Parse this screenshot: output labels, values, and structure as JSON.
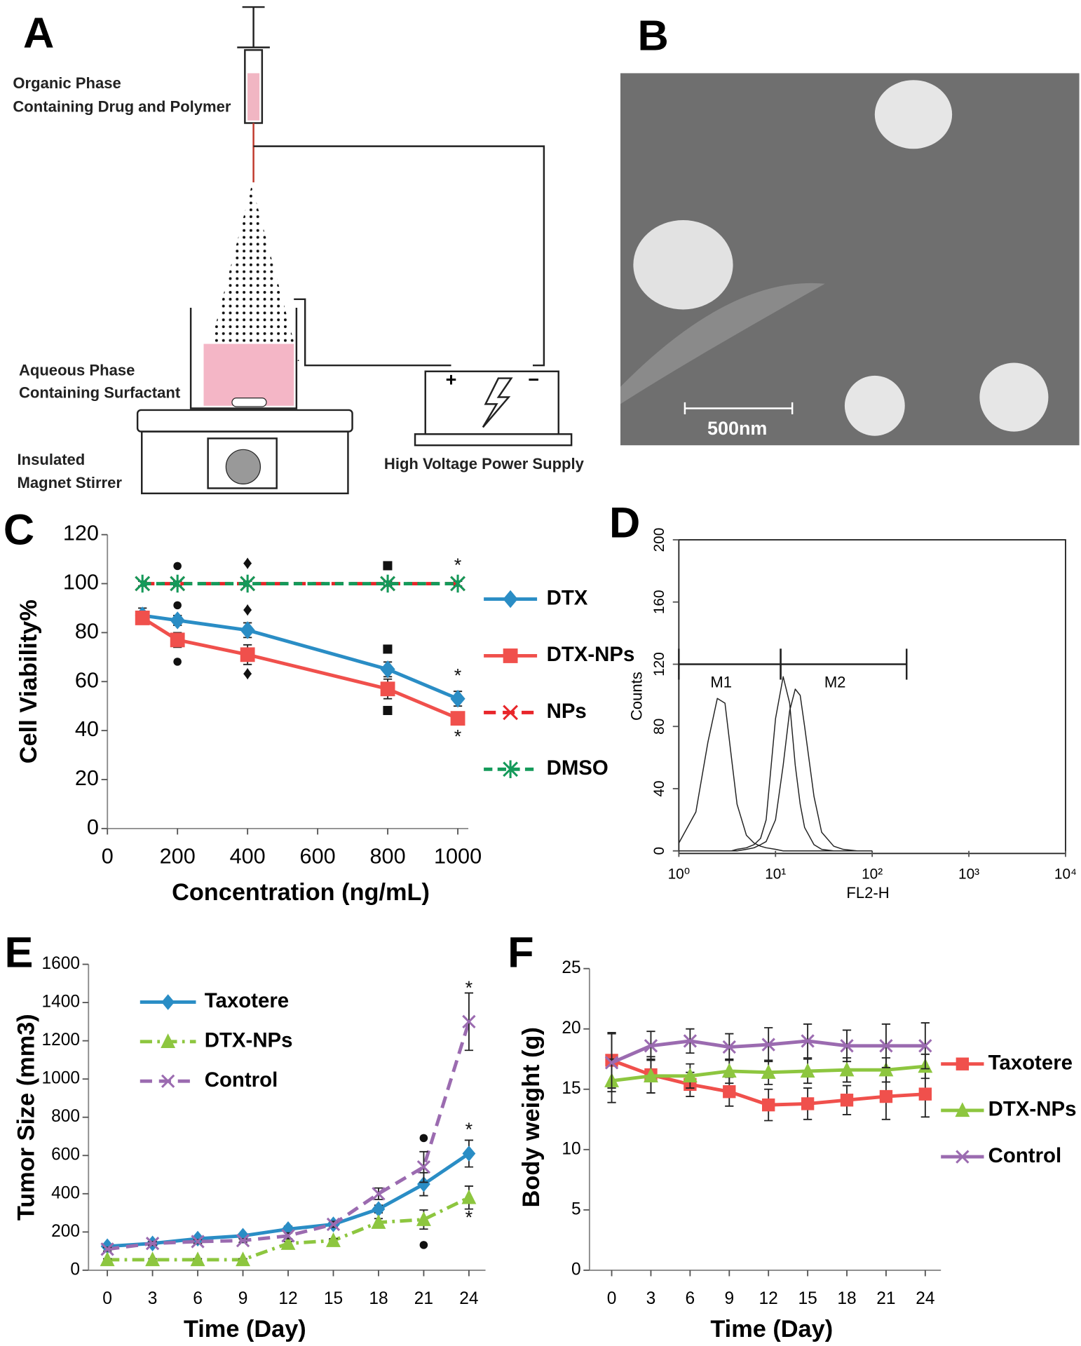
{
  "panel_a": {
    "letter": "A",
    "organic_phase": [
      "Organic Phase",
      "Containing Drug and Polymer"
    ],
    "aqueous_phase": [
      "Aqueous Phase",
      "Containing Surfactant"
    ],
    "stirrer": [
      "Insulated",
      "Magnet Stirrer"
    ],
    "power_supply": "High Voltage Power Supply"
  },
  "panel_b": {
    "letter": "B",
    "scale_bar": "500nm"
  },
  "chart_data": [
    {
      "type": "line",
      "panel": "C",
      "x": [
        100,
        200,
        400,
        800,
        1000
      ],
      "xlim": [
        0,
        1030
      ],
      "xticks": [
        0,
        200,
        400,
        600,
        800,
        1000
      ],
      "ylim": [
        0,
        120
      ],
      "yticks": [
        0,
        20,
        40,
        60,
        80,
        100,
        120
      ],
      "xlabel": "Concentration (ng/mL)",
      "ylabel": "Cell Viability%",
      "series": [
        {
          "name": "DTX",
          "color": "#2a8dc5",
          "marker": "diamond",
          "dash": "solid",
          "values": [
            87,
            85,
            81,
            65,
            53
          ],
          "errors": [
            3,
            2,
            3,
            3,
            3
          ]
        },
        {
          "name": "DTX-NPs",
          "color": "#f0504c",
          "marker": "square",
          "dash": "solid",
          "values": [
            86,
            77,
            71,
            57,
            45
          ],
          "errors": [
            2,
            3,
            4,
            4,
            2
          ]
        },
        {
          "name": "NPs",
          "color": "#e8262a",
          "marker": "x",
          "dash": "dashed",
          "values": [
            100,
            100,
            100,
            100,
            100
          ],
          "errors": [
            1,
            1,
            1,
            1,
            1
          ]
        },
        {
          "name": "DMSO",
          "color": "#149a5a",
          "marker": "asterisk",
          "dash": "dotted",
          "values": [
            100,
            100,
            100,
            100,
            100
          ],
          "errors": [
            1,
            1,
            1,
            1,
            1
          ]
        }
      ],
      "annotations": [
        {
          "text": "●",
          "x": 200,
          "y": 107
        },
        {
          "text": "●",
          "x": 200,
          "y": 91
        },
        {
          "text": "●",
          "x": 200,
          "y": 68
        },
        {
          "text": "♦",
          "x": 400,
          "y": 108
        },
        {
          "text": "♦",
          "x": 400,
          "y": 89
        },
        {
          "text": "♦",
          "x": 400,
          "y": 63
        },
        {
          "text": "■",
          "x": 800,
          "y": 107
        },
        {
          "text": "■",
          "x": 800,
          "y": 73
        },
        {
          "text": "■",
          "x": 800,
          "y": 48
        },
        {
          "text": "*",
          "x": 1000,
          "y": 107
        },
        {
          "text": "*",
          "x": 1000,
          "y": 62
        },
        {
          "text": "*",
          "x": 1000,
          "y": 37
        }
      ]
    },
    {
      "type": "line",
      "panel": "D",
      "xlog": true,
      "box": true,
      "x": [
        1,
        1.5,
        2,
        2.5,
        3,
        3.5,
        4,
        5,
        6,
        7,
        8,
        10,
        12,
        14,
        16,
        18,
        20,
        25,
        30,
        40,
        50,
        70,
        100
      ],
      "xlim": [
        1,
        10000
      ],
      "xticks": [
        {
          "value": 1,
          "label": "10⁰"
        },
        {
          "value": 10,
          "label": "10¹"
        },
        {
          "value": 100,
          "label": "10²"
        },
        {
          "value": 1000,
          "label": "10³"
        },
        {
          "value": 10000,
          "label": "10⁴"
        }
      ],
      "ylim": [
        0,
        200
      ],
      "yticks": [
        0,
        40,
        80,
        120,
        160,
        200
      ],
      "xlabel": "FL2-H",
      "ylabel": "Counts",
      "series": [
        {
          "color": "#222222",
          "values": [
            5,
            25,
            70,
            98,
            95,
            60,
            30,
            10,
            5,
            3,
            2,
            1,
            0,
            0,
            0,
            0,
            0,
            0,
            0,
            0,
            0,
            0,
            0
          ]
        },
        {
          "color": "#222222",
          "values": [
            0,
            0,
            0,
            0,
            0,
            0,
            1,
            2,
            4,
            8,
            20,
            85,
            112,
            95,
            55,
            30,
            15,
            4,
            1,
            0,
            0,
            0,
            0
          ]
        },
        {
          "color": "#222222",
          "values": [
            0,
            0,
            0,
            0,
            0,
            0,
            0,
            1,
            2,
            4,
            6,
            20,
            55,
            90,
            104,
            100,
            80,
            35,
            12,
            3,
            1,
            0,
            0
          ]
        }
      ],
      "gates": [
        {
          "label": "M1",
          "x": [
            1,
            11.3
          ],
          "y": 120
        },
        {
          "label": "M2",
          "x": [
            11.3,
            227
          ],
          "y": 120
        }
      ]
    },
    {
      "type": "line",
      "panel": "E",
      "x": [
        0,
        3,
        6,
        9,
        12,
        15,
        18,
        21,
        24
      ],
      "xlim": [
        -1.25,
        25.1
      ],
      "xticks": [
        0,
        3,
        6,
        9,
        12,
        15,
        18,
        21,
        24
      ],
      "ylim": [
        0,
        1600
      ],
      "yticks": [
        0,
        200,
        400,
        600,
        800,
        1000,
        1200,
        1400,
        1600
      ],
      "xlabel": "Time (Day)",
      "ylabel": "Tumor Size  (mm3)",
      "series": [
        {
          "name": "Taxotere",
          "color": "#2a8dc5",
          "marker": "diamond",
          "dash": "solid",
          "values": [
            125,
            140,
            165,
            180,
            215,
            240,
            320,
            450,
            610
          ],
          "errors": [
            10,
            10,
            10,
            10,
            15,
            15,
            20,
            60,
            70
          ]
        },
        {
          "name": "DTX-NPs",
          "color": "#8dc63f",
          "marker": "triangle",
          "dash": "dashdot",
          "values": [
            55,
            55,
            55,
            55,
            140,
            155,
            250,
            265,
            380
          ],
          "errors": [
            5,
            5,
            5,
            5,
            10,
            10,
            20,
            50,
            60
          ]
        },
        {
          "name": "Control",
          "color": "#9b6bb0",
          "marker": "x",
          "dash": "dashed",
          "values": [
            110,
            140,
            150,
            155,
            180,
            240,
            400,
            540,
            1300
          ],
          "errors": [
            10,
            10,
            10,
            10,
            15,
            15,
            30,
            80,
            150
          ]
        }
      ],
      "annotations": [
        {
          "text": "*",
          "x": 24,
          "y": 1470
        },
        {
          "text": "*",
          "x": 24,
          "y": 730
        },
        {
          "text": "*",
          "x": 24,
          "y": 270
        },
        {
          "text": "●",
          "x": 21,
          "y": 690
        },
        {
          "text": "●",
          "x": 21,
          "y": 130
        }
      ]
    },
    {
      "type": "line",
      "panel": "F",
      "x": [
        0,
        3,
        6,
        9,
        12,
        15,
        18,
        21,
        24
      ],
      "xlim": [
        -1.7,
        25.2
      ],
      "xticks": [
        0,
        3,
        6,
        9,
        12,
        15,
        18,
        21,
        24
      ],
      "ylim": [
        0,
        25
      ],
      "yticks": [
        0,
        5,
        10,
        15,
        20,
        25
      ],
      "xlabel": "Time (Day)",
      "ylabel": "Body weight (g)",
      "series": [
        {
          "name": "Taxotere",
          "color": "#f0504c",
          "marker": "square",
          "dash": "solid",
          "values": [
            17.4,
            16.2,
            15.4,
            14.8,
            13.7,
            13.8,
            14.1,
            14.4,
            14.6
          ],
          "errors": [
            2.3,
            1.5,
            1,
            1.2,
            1.3,
            1.3,
            1.2,
            1.9,
            1.9
          ]
        },
        {
          "name": "DTX-NPs",
          "color": "#8dc63f",
          "marker": "triangle",
          "dash": "solid",
          "values": [
            15.7,
            16.1,
            16.1,
            16.5,
            16.4,
            16.5,
            16.6,
            16.6,
            16.9
          ],
          "errors": [
            1.8,
            1.4,
            1,
            1,
            1,
            1,
            1,
            1,
            1
          ]
        },
        {
          "name": "Control",
          "color": "#9b6bb0",
          "marker": "x",
          "dash": "solid",
          "values": [
            17.2,
            18.6,
            19.0,
            18.5,
            18.7,
            19.0,
            18.6,
            18.6,
            18.6
          ],
          "errors": [
            2.4,
            1.2,
            1,
            1.1,
            1.4,
            1.4,
            1.3,
            1.8,
            1.9
          ]
        }
      ]
    }
  ]
}
